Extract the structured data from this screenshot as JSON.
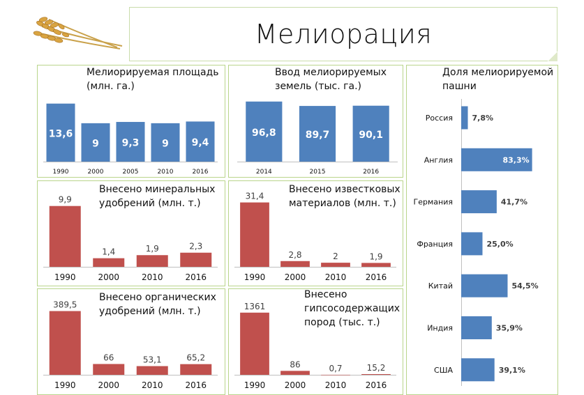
{
  "page": {
    "title": "Мелиорация"
  },
  "chart_data": [
    {
      "id": "area",
      "type": "bar",
      "title": "Мелиорируемая площадь\n(млн. га.)",
      "categories": [
        "1990",
        "2000",
        "2005",
        "2010",
        "2016"
      ],
      "values": [
        13.6,
        9,
        9.3,
        9,
        9.4
      ],
      "labels": [
        "13,6",
        "9",
        "9,3",
        "9",
        "9,4"
      ],
      "ylim": [
        0,
        16
      ],
      "color": "#4f81bd"
    },
    {
      "id": "input",
      "type": "bar",
      "title": "Ввод мелиорируемых\nземель (тыс. га.)",
      "categories": [
        "2014",
        "2015",
        "2016"
      ],
      "values": [
        96.8,
        89.7,
        90.1
      ],
      "labels": [
        "96,8",
        "89,7",
        "90,1"
      ],
      "ylim": [
        0,
        110
      ],
      "color": "#4f81bd"
    },
    {
      "id": "share",
      "type": "bar",
      "orientation": "horizontal",
      "title": "Доля мелиорируемой\nпашни",
      "categories": [
        "Россия",
        "Англия",
        "Германия",
        "Франция",
        "Китай",
        "Индия",
        "США"
      ],
      "values": [
        7.8,
        83.3,
        41.7,
        25.0,
        54.5,
        35.9,
        39.1
      ],
      "labels": [
        "7,8%",
        "83,3%",
        "41,7%",
        "25,0%",
        "54,5%",
        "35,9%",
        "39,1%"
      ],
      "xlim": [
        0,
        100
      ],
      "color": "#4f81bd"
    },
    {
      "id": "mineral",
      "type": "bar",
      "title": "Внесено минеральных\nудобрений (млн. т.)",
      "categories": [
        "1990",
        "2000",
        "2010",
        "2016"
      ],
      "values": [
        9.9,
        1.4,
        1.9,
        2.3
      ],
      "labels": [
        "9,9",
        "1,4",
        "1,9",
        "2,3"
      ],
      "ylim": [
        0,
        11
      ],
      "color": "#c0504d"
    },
    {
      "id": "lime",
      "type": "bar",
      "title": "Внесено известковых\nматериалов (млн. т.)",
      "categories": [
        "1990",
        "2000",
        "2010",
        "2016"
      ],
      "values": [
        31.4,
        2.8,
        2,
        1.9
      ],
      "labels": [
        "31,4",
        "2,8",
        "2",
        "1,9"
      ],
      "ylim": [
        0,
        35
      ],
      "color": "#c0504d"
    },
    {
      "id": "organic",
      "type": "bar",
      "title": "Внесено органических\nудобрений (млн. т.)",
      "categories": [
        "1990",
        "2000",
        "2010",
        "2016"
      ],
      "values": [
        389.5,
        66,
        53.1,
        65.2
      ],
      "labels": [
        "389,5",
        "66",
        "53,1",
        "65,2"
      ],
      "ylim": [
        0,
        430
      ],
      "color": "#c0504d"
    },
    {
      "id": "gypsum",
      "type": "bar",
      "title": "Внесено\nгипсосодержащих\nпород (тыс. т.)",
      "categories": [
        "1990",
        "2000",
        "2010",
        "2016"
      ],
      "values": [
        1361,
        86,
        0.7,
        15.2
      ],
      "labels": [
        "1361",
        "86",
        "0,7",
        "15,2"
      ],
      "ylim": [
        0,
        1510
      ],
      "color": "#c0504d"
    }
  ]
}
